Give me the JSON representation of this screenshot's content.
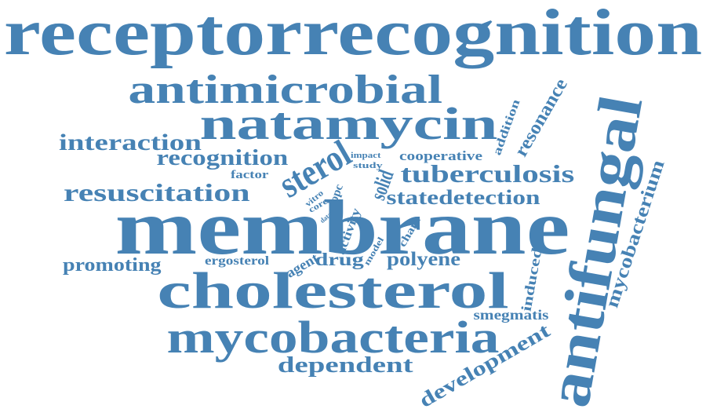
{
  "color": "#4682b4",
  "words": [
    {
      "id": "receptorrecognition",
      "text": "receptorrecognition"
    },
    {
      "id": "antimicrobial",
      "text": "antimicrobial"
    },
    {
      "id": "natamycin",
      "text": "natamycin"
    },
    {
      "id": "interaction",
      "text": "interaction"
    },
    {
      "id": "recognition",
      "text": "recognition"
    },
    {
      "id": "sterol",
      "text": "sterol"
    },
    {
      "id": "resuscitation",
      "text": "resuscitation"
    },
    {
      "id": "factor",
      "text": "factor"
    },
    {
      "id": "impact",
      "text": "impact"
    },
    {
      "id": "study",
      "text": "study"
    },
    {
      "id": "cooperative",
      "text": "cooperative"
    },
    {
      "id": "tuberculosis",
      "text": "tuberculosis"
    },
    {
      "id": "solid",
      "text": "solid"
    },
    {
      "id": "dopc",
      "text": "dopc"
    },
    {
      "id": "vitro",
      "text": "vitro"
    },
    {
      "id": "core",
      "text": "core"
    },
    {
      "id": "data",
      "text": "data"
    },
    {
      "id": "statedetection",
      "text": "statedetection"
    },
    {
      "id": "addition",
      "text": "addition"
    },
    {
      "id": "resonance",
      "text": "resonance"
    },
    {
      "id": "antifungal",
      "text": "antifungal"
    },
    {
      "id": "mycobacterium",
      "text": "mycobacterium"
    },
    {
      "id": "membrane",
      "text": "membrane"
    },
    {
      "id": "activity",
      "text": "activity"
    },
    {
      "id": "chain",
      "text": "chain"
    },
    {
      "id": "model",
      "text": "model"
    },
    {
      "id": "promoting",
      "text": "promoting"
    },
    {
      "id": "ergosterol",
      "text": "ergosterol"
    },
    {
      "id": "agent",
      "text": "agent"
    },
    {
      "id": "drug",
      "text": "drug"
    },
    {
      "id": "polyene",
      "text": "polyene"
    },
    {
      "id": "cholesterol",
      "text": "cholesterol"
    },
    {
      "id": "induced",
      "text": "induced"
    },
    {
      "id": "smegmatis",
      "text": "smegmatis"
    },
    {
      "id": "mycobacteria",
      "text": "mycobacteria"
    },
    {
      "id": "development",
      "text": "development"
    },
    {
      "id": "dependent",
      "text": "dependent"
    }
  ]
}
